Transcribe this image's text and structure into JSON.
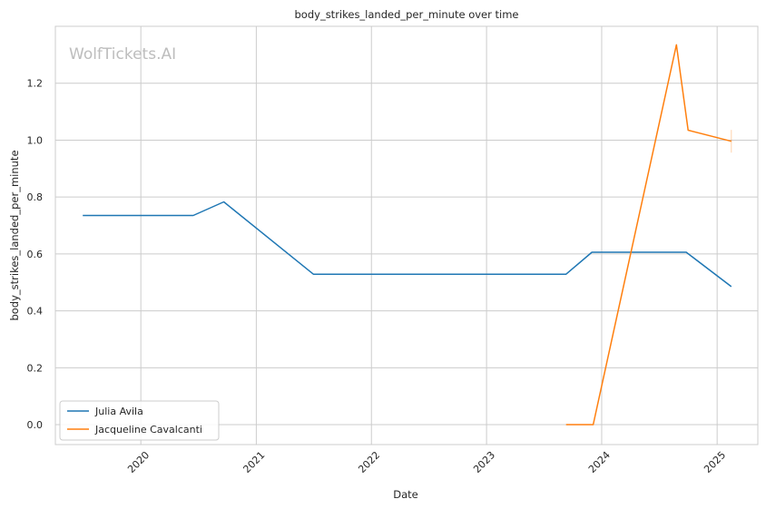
{
  "chart_data": {
    "type": "line",
    "title": "body_strikes_landed_per_minute over time",
    "xlabel": "Date",
    "ylabel": "body_strikes_landed_per_minute",
    "watermark": "WolfTickets.AI",
    "xlim": [
      "2019-04-05",
      "2025-05-10"
    ],
    "ylim": [
      -0.07,
      1.4
    ],
    "x_ticks": [
      {
        "label": "2020",
        "date": "2020-01-01"
      },
      {
        "label": "2021",
        "date": "2021-01-01"
      },
      {
        "label": "2022",
        "date": "2022-01-01"
      },
      {
        "label": "2023",
        "date": "2023-01-01"
      },
      {
        "label": "2024",
        "date": "2024-01-01"
      },
      {
        "label": "2025",
        "date": "2025-01-01"
      }
    ],
    "y_ticks": [
      0.0,
      0.2,
      0.4,
      0.6,
      0.8,
      1.0,
      1.2
    ],
    "y_tick_labels": [
      "0.0",
      "0.2",
      "0.4",
      "0.6",
      "0.8",
      "1.0",
      "1.2"
    ],
    "grid": true,
    "legend_position": "lower-left",
    "series": [
      {
        "name": "Julia Avila",
        "color": "#1f77b4",
        "points": [
          {
            "x": "2019-07-01",
            "y": 0.735
          },
          {
            "x": "2020-06-15",
            "y": 0.735
          },
          {
            "x": "2020-09-20",
            "y": 0.783
          },
          {
            "x": "2021-07-01",
            "y": 0.529
          },
          {
            "x": "2023-09-10",
            "y": 0.529
          },
          {
            "x": "2023-12-01",
            "y": 0.606
          },
          {
            "x": "2024-09-25",
            "y": 0.606
          },
          {
            "x": "2025-02-15",
            "y": 0.485
          }
        ]
      },
      {
        "name": "Jacqueline Cavalcanti",
        "color": "#ff7f0e",
        "points": [
          {
            "x": "2023-09-10",
            "y": 0.0
          },
          {
            "x": "2023-12-05",
            "y": 0.0
          },
          {
            "x": "2024-08-25",
            "y": 1.335
          },
          {
            "x": "2024-10-01",
            "y": 1.035
          },
          {
            "x": "2025-02-15",
            "y": 0.996
          }
        ],
        "error_bar": {
          "x": "2025-02-15",
          "low": 0.956,
          "high": 1.036
        }
      }
    ]
  }
}
